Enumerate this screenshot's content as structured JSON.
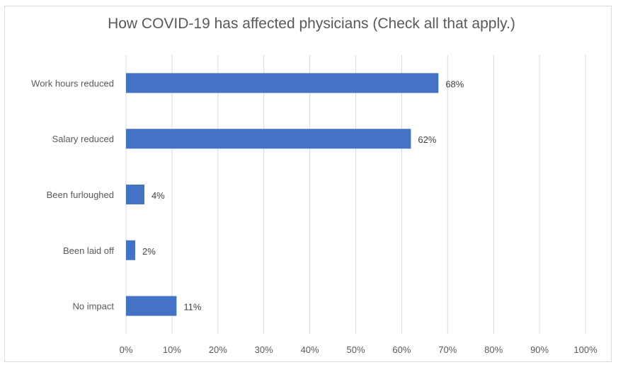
{
  "chart_data": {
    "type": "bar",
    "orientation": "horizontal",
    "title": "How COVID-19 has affected physicians (Check all that apply.)",
    "categories": [
      "Work hours reduced",
      "Salary reduced",
      "Been furloughed",
      "Been laid off",
      "No impact"
    ],
    "values": [
      68,
      62,
      4,
      2,
      11
    ],
    "data_labels": [
      "68%",
      "62%",
      "4%",
      "2%",
      "11%"
    ],
    "xlim": [
      0,
      100
    ],
    "x_ticks": [
      "0%",
      "10%",
      "20%",
      "30%",
      "40%",
      "50%",
      "60%",
      "70%",
      "80%",
      "90%",
      "100%"
    ],
    "grid": "vertical",
    "bar_color": "#4472C4",
    "grid_color": "#d9d9d9"
  }
}
